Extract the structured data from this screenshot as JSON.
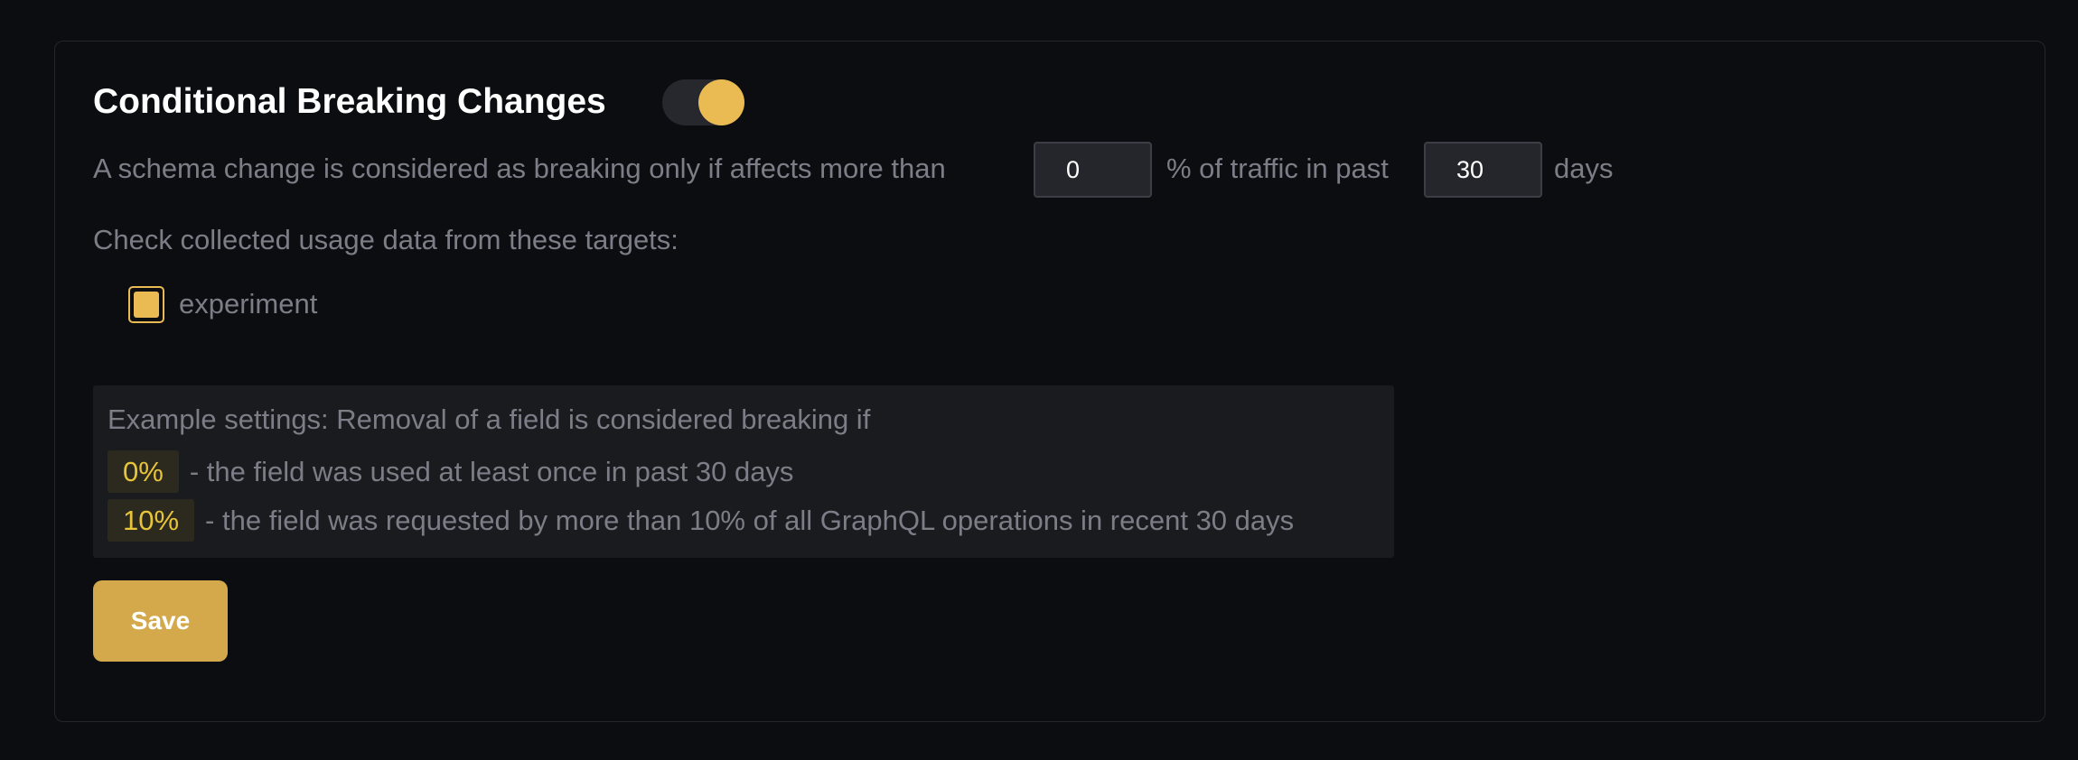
{
  "section": {
    "title": "Conditional Breaking Changes",
    "enabled": true,
    "accent_color": "#e9bb52"
  },
  "rule": {
    "prefix": "A schema change is considered as breaking only if affects more than",
    "percentage_value": "0",
    "middle": "% of traffic in past",
    "days_value": "30",
    "suffix": "days"
  },
  "targets": {
    "label": "Check collected usage data from these targets:",
    "items": [
      {
        "label": "experiment",
        "checked": true
      }
    ]
  },
  "example": {
    "heading": "Example settings: Removal of a field is considered breaking if",
    "rows": [
      {
        "badge": "0%",
        "text": "- the field was used at least once in past 30 days"
      },
      {
        "badge": "10%",
        "text": "- the field was requested by more than 10% of all GraphQL operations in recent 30 days"
      }
    ]
  },
  "actions": {
    "save_label": "Save"
  }
}
